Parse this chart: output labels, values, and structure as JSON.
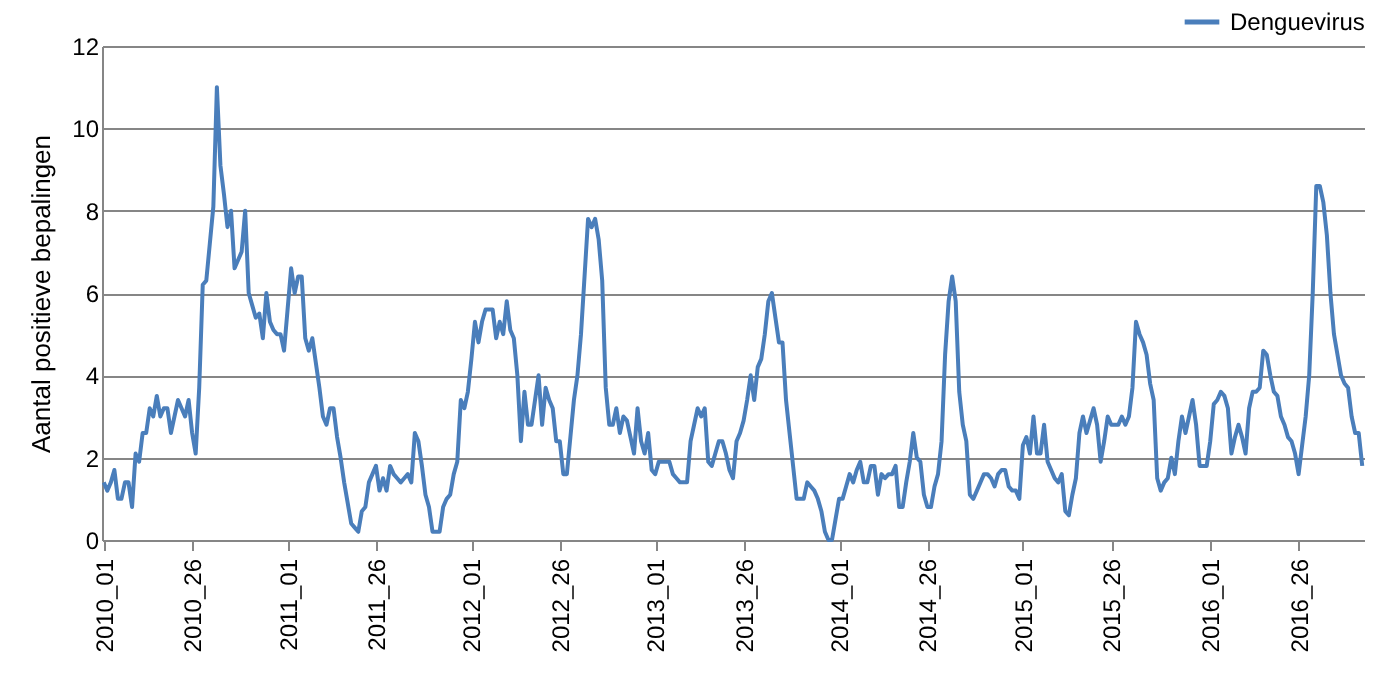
{
  "chart_data": {
    "type": "line",
    "ylabel": "Aantal positieve bepalingen",
    "categories": [
      "2010_01",
      null,
      null,
      null,
      null,
      null,
      null,
      null,
      null,
      null,
      null,
      null,
      null,
      null,
      null,
      null,
      null,
      null,
      null,
      null,
      null,
      null,
      null,
      null,
      null,
      "2010_26",
      null,
      null,
      null,
      null,
      null,
      null,
      null,
      null,
      null,
      null,
      null,
      null,
      null,
      null,
      null,
      null,
      null,
      null,
      null,
      null,
      null,
      null,
      null,
      null,
      null,
      null,
      "2011_01",
      null,
      null,
      null,
      null,
      null,
      null,
      null,
      null,
      null,
      null,
      null,
      null,
      null,
      null,
      null,
      null,
      null,
      null,
      null,
      null,
      null,
      null,
      null,
      null,
      "2011_26",
      null,
      null,
      null,
      null,
      null,
      null,
      null,
      null,
      null,
      null,
      null,
      null,
      null,
      null,
      null,
      null,
      null,
      null,
      null,
      null,
      null,
      null,
      null,
      null,
      null,
      null,
      "2012_01",
      null,
      null,
      null,
      null,
      null,
      null,
      null,
      null,
      null,
      null,
      null,
      null,
      null,
      null,
      null,
      null,
      null,
      null,
      null,
      null,
      null,
      null,
      null,
      null,
      "2012_26",
      null,
      null,
      null,
      null,
      null,
      null,
      null,
      null,
      null,
      null,
      null,
      null,
      null,
      null,
      null,
      null,
      null,
      null,
      null,
      null,
      null,
      null,
      null,
      null,
      null,
      null,
      "2013_01",
      null,
      null,
      null,
      null,
      null,
      null,
      null,
      null,
      null,
      null,
      null,
      null,
      null,
      null,
      null,
      null,
      null,
      null,
      null,
      null,
      null,
      null,
      null,
      null,
      "2013_26",
      null,
      null,
      null,
      null,
      null,
      null,
      null,
      null,
      null,
      null,
      null,
      null,
      null,
      null,
      null,
      null,
      null,
      null,
      null,
      null,
      null,
      null,
      null,
      null,
      null,
      null,
      "2014_01",
      null,
      null,
      null,
      null,
      null,
      null,
      null,
      null,
      null,
      null,
      null,
      null,
      null,
      null,
      null,
      null,
      null,
      null,
      null,
      null,
      null,
      null,
      null,
      null,
      "2014_26",
      null,
      null,
      null,
      null,
      null,
      null,
      null,
      null,
      null,
      null,
      null,
      null,
      null,
      null,
      null,
      null,
      null,
      null,
      null,
      null,
      null,
      null,
      null,
      null,
      null,
      null,
      "2015_01",
      null,
      null,
      null,
      null,
      null,
      null,
      null,
      null,
      null,
      null,
      null,
      null,
      null,
      null,
      null,
      null,
      null,
      null,
      null,
      null,
      null,
      null,
      null,
      null,
      "2015_26",
      null,
      null,
      null,
      null,
      null,
      null,
      null,
      null,
      null,
      null,
      null,
      null,
      null,
      null,
      null,
      null,
      null,
      null,
      null,
      null,
      null,
      null,
      null,
      null,
      null,
      null,
      null,
      "2016_01",
      null,
      null,
      null,
      null,
      null,
      null,
      null,
      null,
      null,
      null,
      null,
      null,
      null,
      null,
      null,
      null,
      null,
      null,
      null,
      null,
      null,
      null,
      null,
      null,
      "2016_26",
      null,
      null,
      null,
      null,
      null,
      null,
      null,
      null,
      null,
      null,
      null,
      null,
      null,
      null,
      null,
      null,
      null,
      null
    ],
    "series": [
      {
        "name": "Denguevirus",
        "color": "#4a7ebb",
        "values": [
          1.4,
          1.2,
          1.4,
          1.7,
          1.0,
          1.0,
          1.4,
          1.4,
          0.8,
          2.1,
          1.9,
          2.6,
          2.6,
          3.2,
          3.0,
          3.5,
          3.0,
          3.2,
          3.2,
          2.6,
          3.0,
          3.4,
          3.2,
          3.0,
          3.4,
          2.6,
          2.1,
          3.7,
          6.2,
          6.3,
          7.2,
          8.1,
          11.0,
          9.1,
          8.4,
          7.6,
          8.0,
          6.6,
          6.8,
          7.0,
          8.0,
          6.0,
          5.7,
          5.4,
          5.5,
          4.9,
          6.0,
          5.3,
          5.1,
          5.0,
          5.0,
          4.6,
          5.6,
          6.6,
          6.0,
          6.4,
          6.4,
          4.9,
          4.6,
          4.9,
          4.3,
          3.7,
          3.0,
          2.8,
          3.2,
          3.2,
          2.5,
          2.0,
          1.4,
          0.9,
          0.4,
          0.3,
          0.2,
          0.7,
          0.8,
          1.4,
          1.6,
          1.8,
          1.2,
          1.5,
          1.2,
          1.8,
          1.6,
          1.5,
          1.4,
          1.5,
          1.6,
          1.4,
          2.6,
          2.4,
          1.8,
          1.1,
          0.8,
          0.2,
          0.2,
          0.2,
          0.8,
          1.0,
          1.1,
          1.6,
          1.9,
          3.4,
          3.2,
          3.6,
          4.4,
          5.3,
          4.8,
          5.3,
          5.6,
          5.6,
          5.6,
          4.9,
          5.3,
          5.0,
          5.8,
          5.1,
          4.9,
          4.0,
          2.4,
          3.6,
          2.8,
          2.8,
          3.4,
          4.0,
          2.8,
          3.7,
          3.4,
          3.2,
          2.4,
          2.4,
          1.6,
          1.6,
          2.5,
          3.4,
          4.0,
          5.0,
          6.4,
          7.8,
          7.6,
          7.8,
          7.3,
          6.3,
          3.7,
          2.8,
          2.8,
          3.2,
          2.6,
          3.0,
          2.9,
          2.5,
          2.1,
          3.2,
          2.4,
          2.1,
          2.6,
          1.7,
          1.6,
          1.9,
          1.9,
          1.9,
          1.9,
          1.6,
          1.5,
          1.4,
          1.4,
          1.4,
          2.4,
          2.8,
          3.2,
          3.0,
          3.2,
          1.9,
          1.8,
          2.1,
          2.4,
          2.4,
          2.1,
          1.7,
          1.5,
          2.4,
          2.6,
          2.9,
          3.4,
          4.0,
          3.4,
          4.2,
          4.4,
          5.0,
          5.8,
          6.0,
          5.4,
          4.8,
          4.8,
          3.4,
          2.6,
          1.8,
          1.0,
          1.0,
          1.0,
          1.4,
          1.3,
          1.2,
          1.0,
          0.7,
          0.2,
          0.0,
          0.0,
          0.5,
          1.0,
          1.0,
          1.3,
          1.6,
          1.4,
          1.7,
          1.9,
          1.4,
          1.4,
          1.8,
          1.8,
          1.1,
          1.6,
          1.5,
          1.6,
          1.6,
          1.8,
          0.8,
          0.8,
          1.4,
          1.9,
          2.6,
          2.0,
          1.9,
          1.1,
          0.8,
          0.8,
          1.3,
          1.6,
          2.4,
          4.5,
          5.8,
          6.4,
          5.8,
          3.6,
          2.8,
          2.4,
          1.1,
          1.0,
          1.2,
          1.4,
          1.6,
          1.6,
          1.5,
          1.3,
          1.6,
          1.7,
          1.7,
          1.3,
          1.2,
          1.2,
          1.0,
          2.3,
          2.5,
          2.1,
          3.0,
          2.1,
          2.1,
          2.8,
          1.9,
          1.7,
          1.5,
          1.4,
          1.6,
          0.7,
          0.6,
          1.1,
          1.5,
          2.6,
          3.0,
          2.6,
          2.9,
          3.2,
          2.8,
          1.9,
          2.4,
          3.0,
          2.8,
          2.8,
          2.8,
          3.0,
          2.8,
          3.0,
          3.7,
          5.3,
          5.0,
          4.8,
          4.5,
          3.8,
          3.4,
          1.5,
          1.2,
          1.4,
          1.5,
          2.0,
          1.6,
          2.4,
          3.0,
          2.6,
          3.0,
          3.4,
          2.8,
          1.8,
          1.8,
          1.8,
          2.4,
          3.3,
          3.4,
          3.6,
          3.5,
          3.2,
          2.1,
          2.5,
          2.8,
          2.5,
          2.1,
          3.2,
          3.6,
          3.6,
          3.7,
          4.6,
          4.5,
          4.0,
          3.6,
          3.5,
          3.0,
          2.8,
          2.5,
          2.4,
          2.1,
          1.6,
          2.3,
          3.0,
          4.0,
          6.0,
          8.6,
          8.6,
          8.2,
          7.4,
          6.0,
          5.0,
          4.5,
          4.0,
          3.8,
          3.7,
          3.0,
          2.6,
          2.6,
          1.8
        ]
      }
    ],
    "ylim": [
      0,
      12
    ],
    "yticks": [
      0,
      2,
      4,
      6,
      8,
      10,
      12
    ],
    "grid": "y",
    "legend": "top right",
    "line_style": "solid"
  }
}
